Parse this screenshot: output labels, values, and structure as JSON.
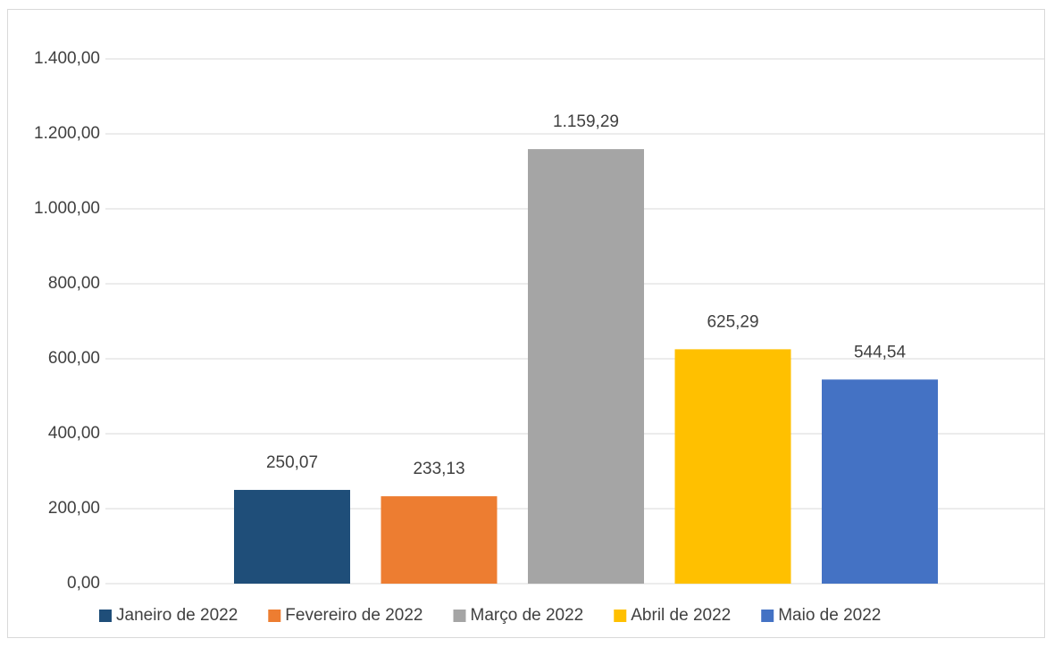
{
  "chart_data": {
    "type": "bar",
    "series": [
      {
        "name": "Janeiro de 2022",
        "color": "#1f4e79",
        "values": [
          250.07
        ],
        "value_labels": [
          "250,07"
        ]
      },
      {
        "name": "Fevereiro de 2022",
        "color": "#ed7d31",
        "values": [
          233.13
        ],
        "value_labels": [
          "233,13"
        ]
      },
      {
        "name": "Março de 2022",
        "color": "#a5a5a5",
        "values": [
          1159.29
        ],
        "value_labels": [
          "1.159,29"
        ]
      },
      {
        "name": "Abril de 2022",
        "color": "#ffc000",
        "values": [
          625.29
        ],
        "value_labels": [
          "625,29"
        ]
      },
      {
        "name": "Maio de 2022",
        "color": "#4472c4",
        "values": [
          544.54
        ],
        "value_labels": [
          "544,54"
        ]
      }
    ],
    "ylim": [
      0,
      1400
    ],
    "yticks": [
      {
        "value": 0,
        "label": "0,00"
      },
      {
        "value": 200,
        "label": "200,00"
      },
      {
        "value": 400,
        "label": "400,00"
      },
      {
        "value": 600,
        "label": "600,00"
      },
      {
        "value": 800,
        "label": "800,00"
      },
      {
        "value": 1000,
        "label": "1.000,00"
      },
      {
        "value": 1200,
        "label": "1.200,00"
      },
      {
        "value": 1400,
        "label": "1.400,00"
      }
    ],
    "grid": true,
    "legend": "bottom"
  }
}
